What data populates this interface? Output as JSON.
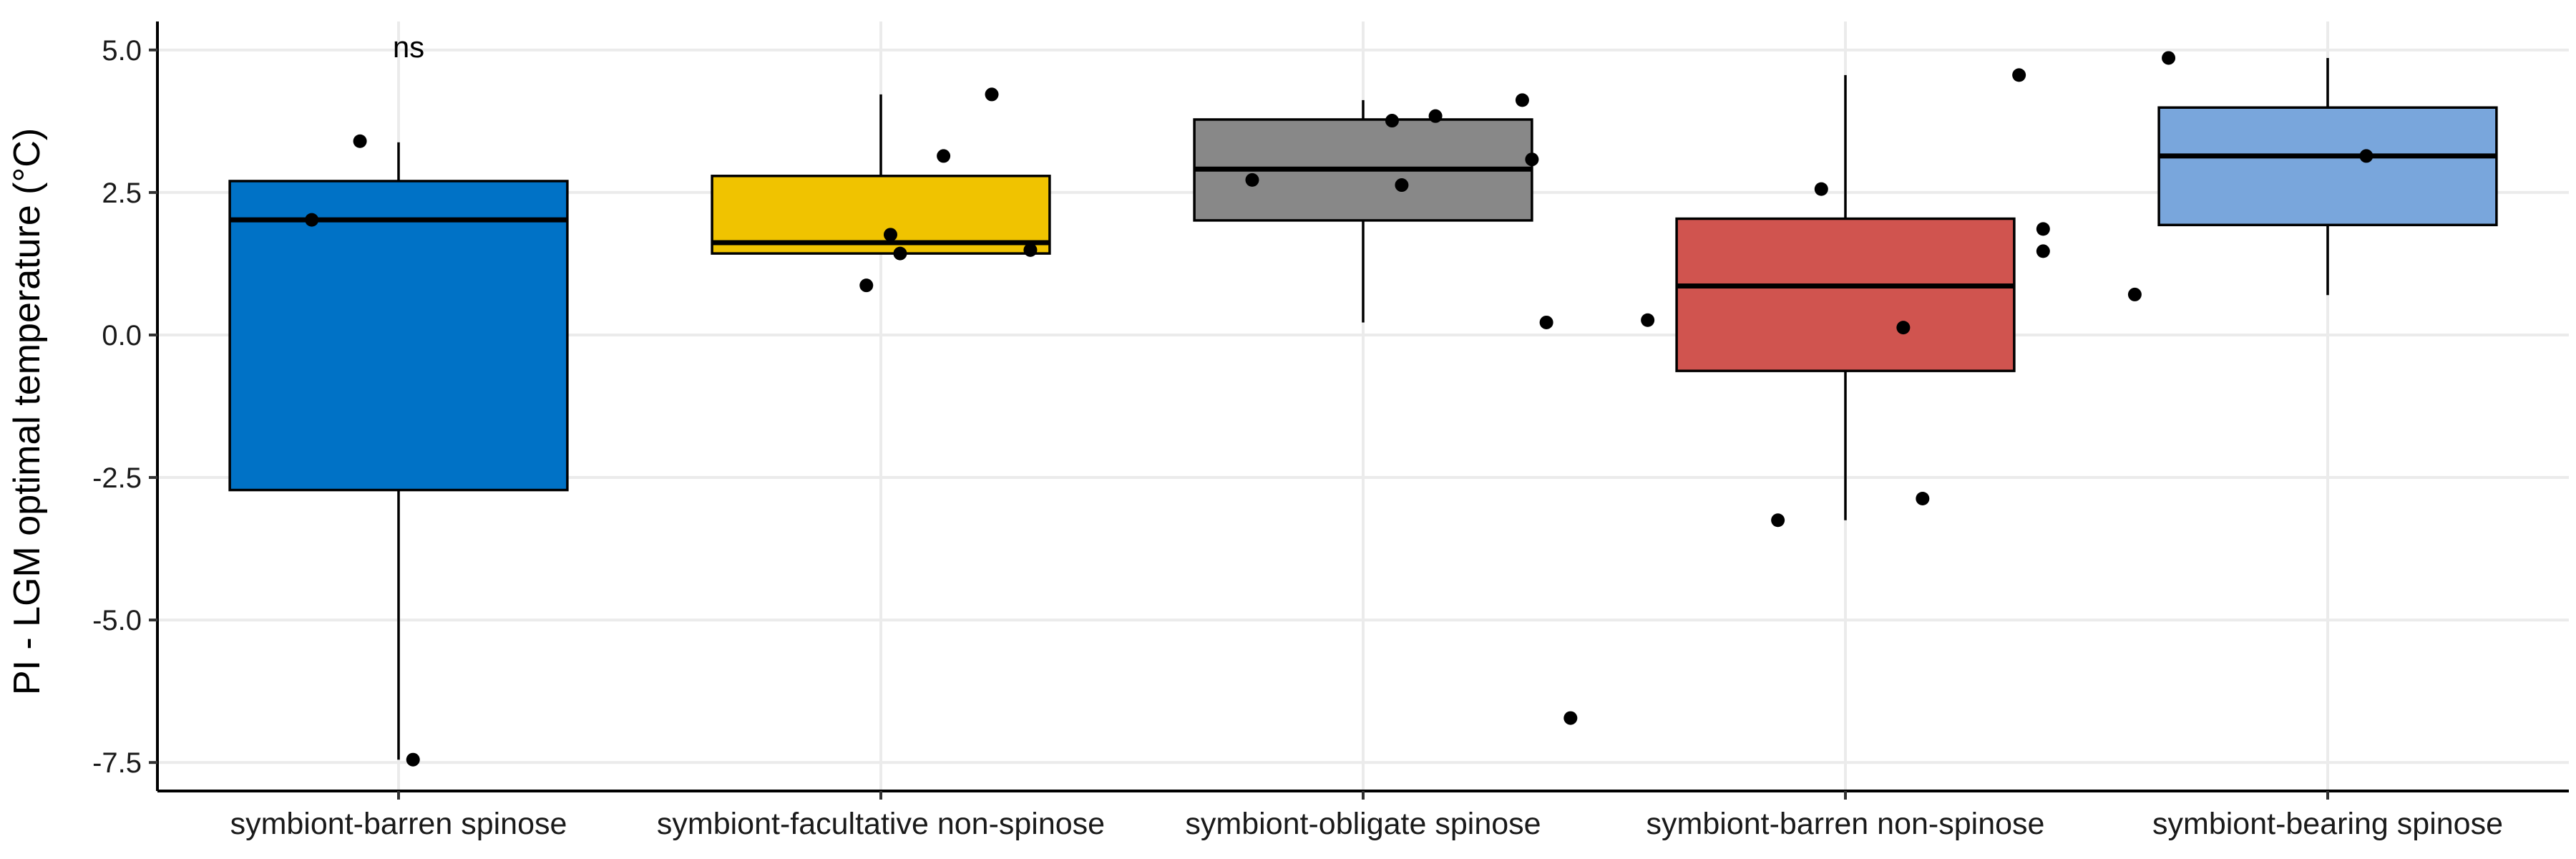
{
  "chart_data": {
    "type": "box",
    "ylabel": "PI - LGM optimal temperature (°C)",
    "ylim": [
      -8.0,
      5.5
    ],
    "yticks": [
      5.0,
      2.5,
      0.0,
      -2.5,
      -5.0,
      -7.5
    ],
    "ytick_labels": [
      "5.0",
      "2.5",
      "0.0",
      "-2.5",
      "-5.0",
      "-7.5"
    ],
    "grid": true,
    "annotation": {
      "text": "ns",
      "category_index": 0,
      "y": 5.0
    },
    "categories": [
      "symbiont-barren spinose",
      "symbiont-facultative non-spinose",
      "symbiont-obligate spinose",
      "symbiont-barren non-spinose",
      "symbiont-bearing spinose"
    ],
    "colors": [
      "#0072c6",
      "#f0c300",
      "#888888",
      "#d0544f",
      "#79a6dc"
    ],
    "boxes": [
      {
        "q1": -2.72,
        "median": 2.02,
        "q3": 2.7,
        "whisker_low": -7.45,
        "whisker_high": 3.38
      },
      {
        "q1": 1.43,
        "median": 1.62,
        "q3": 2.79,
        "whisker_low": 1.43,
        "whisker_high": 4.22
      },
      {
        "q1": 2.01,
        "median": 2.91,
        "q3": 3.78,
        "whisker_low": 0.22,
        "whisker_high": 4.12
      },
      {
        "q1": -0.63,
        "median": 0.86,
        "q3": 2.04,
        "whisker_low": -3.25,
        "whisker_high": 4.56
      },
      {
        "q1": 1.93,
        "median": 3.14,
        "q3": 3.99,
        "whisker_low": 0.7,
        "whisker_high": 4.86
      }
    ],
    "points": [
      [
        {
          "jitter": -0.08,
          "y": 3.4
        },
        {
          "jitter": -0.18,
          "y": 2.02
        },
        {
          "jitter": 0.03,
          "y": -7.45
        }
      ],
      [
        {
          "jitter": -0.03,
          "y": 0.87
        },
        {
          "jitter": 0.02,
          "y": 1.76
        },
        {
          "jitter": 0.04,
          "y": 1.43
        },
        {
          "jitter": 0.13,
          "y": 3.14
        },
        {
          "jitter": 0.23,
          "y": 4.22
        },
        {
          "jitter": 0.31,
          "y": 1.49
        }
      ],
      [
        {
          "jitter": -0.23,
          "y": 2.72
        },
        {
          "jitter": 0.06,
          "y": 3.76
        },
        {
          "jitter": 0.15,
          "y": 3.84
        },
        {
          "jitter": 0.08,
          "y": 2.63
        },
        {
          "jitter": 0.33,
          "y": 4.12
        },
        {
          "jitter": 0.35,
          "y": 3.08
        },
        {
          "jitter": 0.38,
          "y": 0.22
        },
        {
          "jitter": 0.43,
          "y": -6.72
        }
      ],
      [
        {
          "jitter": -0.41,
          "y": 0.26
        },
        {
          "jitter": -0.05,
          "y": 2.56
        },
        {
          "jitter": 0.12,
          "y": 0.13
        },
        {
          "jitter": -0.14,
          "y": -3.25
        },
        {
          "jitter": 0.16,
          "y": -2.87
        },
        {
          "jitter": 0.36,
          "y": 4.56
        },
        {
          "jitter": 0.41,
          "y": 1.86
        },
        {
          "jitter": 0.41,
          "y": 1.47
        }
      ],
      [
        {
          "jitter": -0.4,
          "y": 0.71
        },
        {
          "jitter": -0.33,
          "y": 4.86
        },
        {
          "jitter": 0.08,
          "y": 3.14
        }
      ]
    ]
  }
}
